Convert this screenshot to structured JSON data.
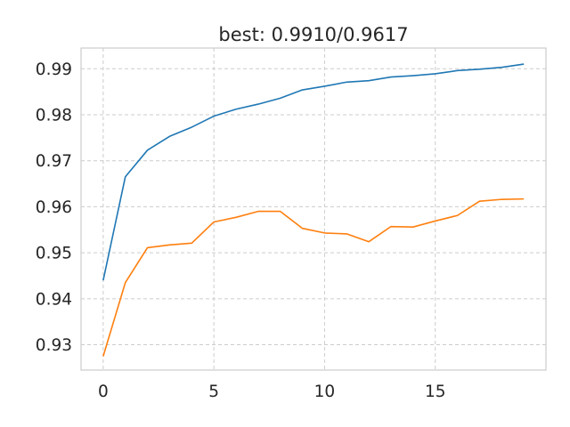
{
  "chart_data": {
    "type": "line",
    "title": "best: 0.9910/0.9617",
    "xlabel": "",
    "ylabel": "",
    "xlim": [
      -1,
      20
    ],
    "ylim": [
      0.9245,
      0.9945
    ],
    "x_ticks": [
      0,
      5,
      10,
      15
    ],
    "y_ticks": [
      0.93,
      0.94,
      0.95,
      0.96,
      0.97,
      0.98,
      0.99
    ],
    "x_tick_labels": [
      "0",
      "5",
      "10",
      "15"
    ],
    "y_tick_labels": [
      "0.93",
      "0.94",
      "0.95",
      "0.96",
      "0.97",
      "0.98",
      "0.99"
    ],
    "grid": true,
    "x": [
      0,
      1,
      2,
      3,
      4,
      5,
      6,
      7,
      8,
      9,
      10,
      11,
      12,
      13,
      14,
      15,
      16,
      17,
      18,
      19
    ],
    "series": [
      {
        "color": "#1f77b4",
        "values": [
          0.944,
          0.9665,
          0.9723,
          0.9753,
          0.9773,
          0.9797,
          0.9812,
          0.9823,
          0.9836,
          0.9854,
          0.9862,
          0.9871,
          0.9874,
          0.9882,
          0.9885,
          0.9889,
          0.9896,
          0.9899,
          0.9903,
          0.991
        ]
      },
      {
        "color": "#ff7f0e",
        "values": [
          0.9275,
          0.9435,
          0.9511,
          0.9517,
          0.9521,
          0.9567,
          0.9577,
          0.959,
          0.959,
          0.9553,
          0.9543,
          0.9541,
          0.9524,
          0.9557,
          0.9556,
          0.9569,
          0.9581,
          0.9612,
          0.9616,
          0.9617
        ]
      }
    ]
  }
}
